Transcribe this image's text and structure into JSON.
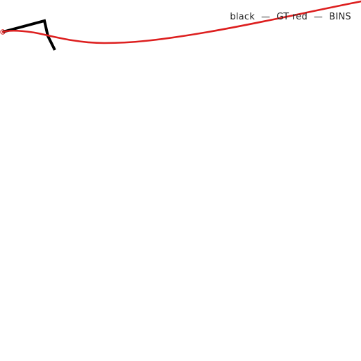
{
  "legend": {
    "text": "black  —  GT red  —  BINS"
  },
  "colors": {
    "background": "#ffffff",
    "ground_truth": "#000000",
    "bins": "#dd1f1f",
    "legend_text": "#222222"
  },
  "traces": [
    {
      "name": "GT",
      "color": "black"
    },
    {
      "name": "BINS",
      "color": "red"
    }
  ]
}
